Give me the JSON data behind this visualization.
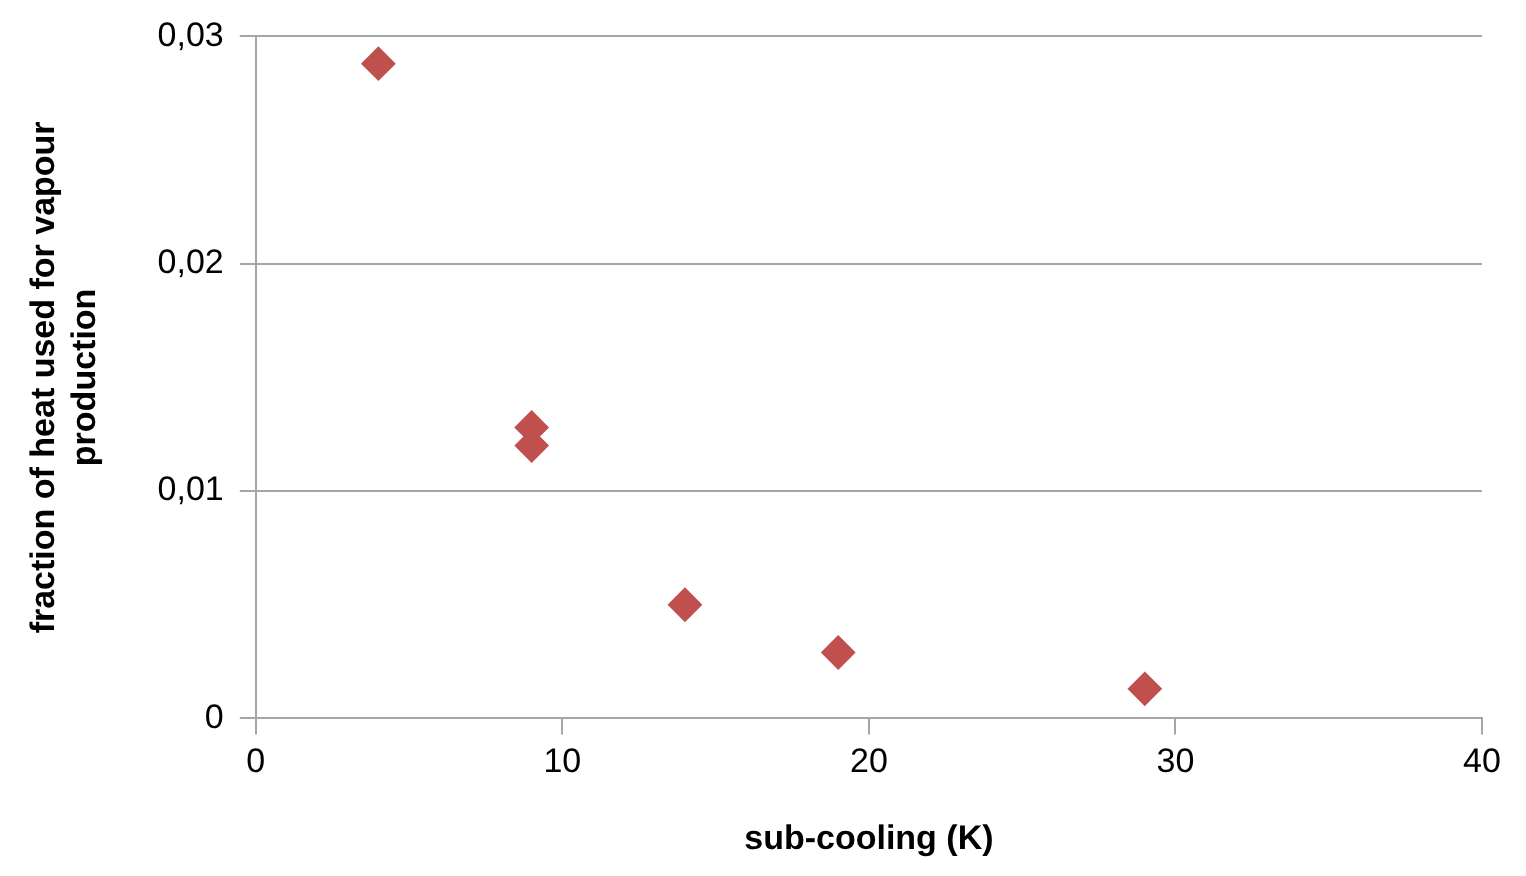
{
  "chart_data": {
    "type": "scatter",
    "xlabel": "sub-cooling (K)",
    "ylabel": "fraction of heat used for vapour production",
    "x": [
      4,
      9,
      9,
      14,
      19,
      29
    ],
    "values": [
      0.0288,
      0.0128,
      0.012,
      0.005,
      0.0029,
      0.0013
    ],
    "color": "#c0504d",
    "marker": "diamond",
    "xlim": [
      0,
      40
    ],
    "xticks": [
      0,
      10,
      20,
      30,
      40
    ],
    "ylim": [
      0,
      0.03
    ],
    "yticks": [
      {
        "value": 0,
        "label": "0"
      },
      {
        "value": 0.01,
        "label": "0,01"
      },
      {
        "value": 0.02,
        "label": "0,02"
      },
      {
        "value": 0.03,
        "label": "0,03"
      }
    ],
    "grid": "y",
    "legend": false
  }
}
